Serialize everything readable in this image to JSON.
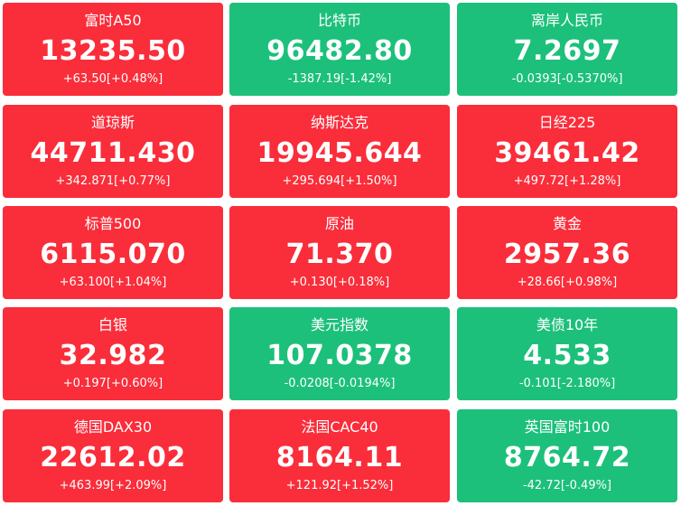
{
  "tiles": [
    {
      "name": "富时A50",
      "price": "13235.50",
      "change": "+63.50[+0.48%]",
      "direction": "up"
    },
    {
      "name": "比特币",
      "price": "96482.80",
      "change": "-1387.19[-1.42%]",
      "direction": "down"
    },
    {
      "name": "离岸人民币",
      "price": "7.2697",
      "change": "-0.0393[-0.5370%]",
      "direction": "down"
    },
    {
      "name": "道琼斯",
      "price": "44711.430",
      "change": "+342.871[+0.77%]",
      "direction": "up"
    },
    {
      "name": "纳斯达克",
      "price": "19945.644",
      "change": "+295.694[+1.50%]",
      "direction": "up"
    },
    {
      "name": "日经225",
      "price": "39461.42",
      "change": "+497.72[+1.28%]",
      "direction": "up"
    },
    {
      "name": "标普500",
      "price": "6115.070",
      "change": "+63.100[+1.04%]",
      "direction": "up"
    },
    {
      "name": "原油",
      "price": "71.370",
      "change": "+0.130[+0.18%]",
      "direction": "up"
    },
    {
      "name": "黄金",
      "price": "2957.36",
      "change": "+28.66[+0.98%]",
      "direction": "up"
    },
    {
      "name": "白银",
      "price": "32.982",
      "change": "+0.197[+0.60%]",
      "direction": "up"
    },
    {
      "name": "美元指数",
      "price": "107.0378",
      "change": "-0.0208[-0.0194%]",
      "direction": "down"
    },
    {
      "name": "美债10年",
      "price": "4.533",
      "change": "-0.101[-2.180%]",
      "direction": "down"
    },
    {
      "name": "德国DAX30",
      "price": "22612.02",
      "change": "+463.99[+2.09%]",
      "direction": "up"
    },
    {
      "name": "法国CAC40",
      "price": "8164.11",
      "change": "+121.92[+1.52%]",
      "direction": "up"
    },
    {
      "name": "英国富时100",
      "price": "8764.72",
      "change": "-42.72[-0.49%]",
      "direction": "down"
    }
  ],
  "colors": {
    "up": "#fa2d3a",
    "down": "#1cc07b",
    "text": "#ffffff"
  }
}
